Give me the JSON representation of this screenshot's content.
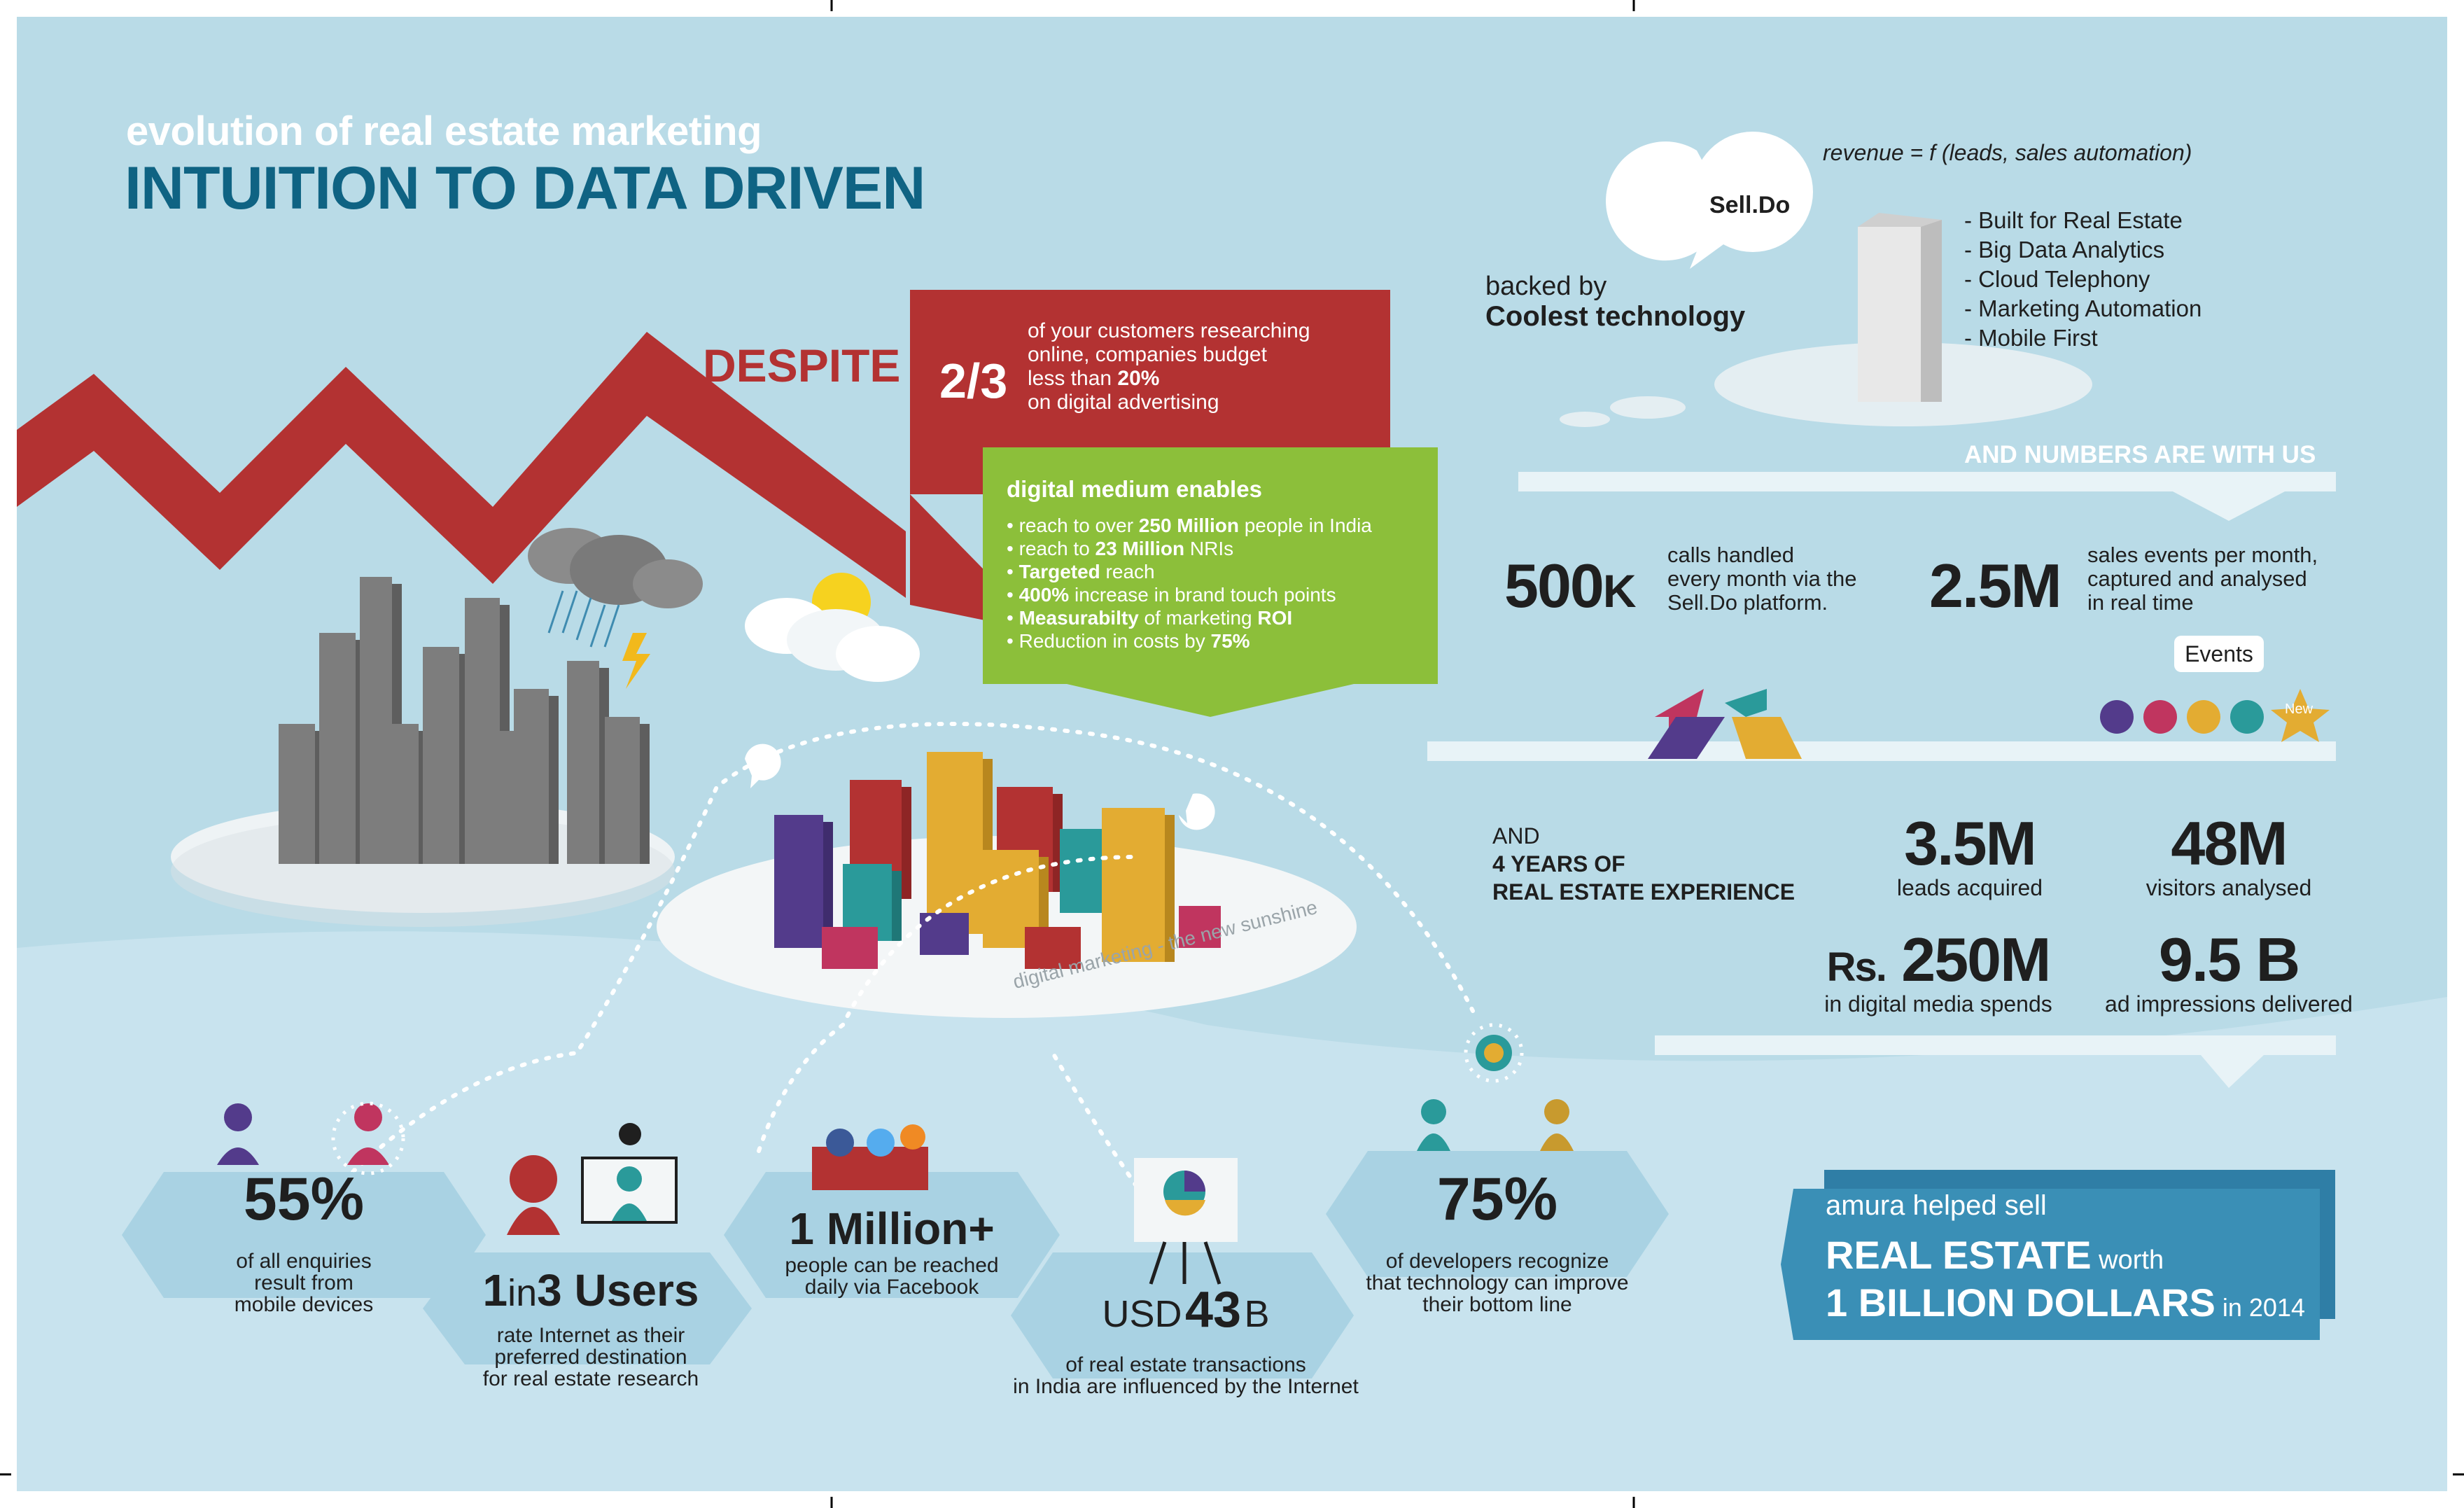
{
  "header": {
    "subtitle": "evolution of real estate marketing",
    "title": "INTUITION TO DATA DRIVEN"
  },
  "despite": {
    "label": "DESPITE",
    "fraction": "2/3",
    "text_parts": [
      "of your customers researching",
      "online, companies budget",
      "less than ",
      "20%",
      "on digital advertising"
    ]
  },
  "digital_medium": {
    "title": "digital medium enables",
    "items": [
      {
        "pre": "reach to over ",
        "bold": "250 Million",
        "post": " people in India"
      },
      {
        "pre": "reach to ",
        "bold": "23 Million",
        "post": " NRIs"
      },
      {
        "pre": "",
        "bold": "Targeted",
        "post": " reach"
      },
      {
        "pre": "",
        "bold": "400%",
        "post": " increase in brand touch points"
      },
      {
        "pre": "",
        "bold": "Measurabilty",
        "post": " of marketing ",
        "bold2": "ROI"
      },
      {
        "pre": "Reduction in costs by ",
        "bold": "75%",
        "post": ""
      }
    ]
  },
  "caption": "digital marketing - the new sunshine",
  "selldo": {
    "formula": "revenue = f (leads, sales automation)",
    "bubble": "Sell.Do",
    "backed_by": "backed by",
    "backed_by_bold": "Coolest technology",
    "features": [
      "Built for Real Estate",
      "Big Data Analytics",
      "Cloud Telephony",
      "Marketing Automation",
      "Mobile First"
    ]
  },
  "numbers": {
    "heading": "AND NUMBERS ARE WITH US",
    "calls": {
      "value": "500",
      "unit": "K",
      "text": [
        "calls handled",
        "every month via the",
        "Sell.Do platform."
      ]
    },
    "events": {
      "value": "2.5M",
      "text": [
        "sales events per month,",
        "captured and analysed",
        "in real time"
      ],
      "pill": "Events",
      "star": "New"
    }
  },
  "experience": {
    "and": "AND",
    "years": "4 YEARS OF",
    "re": "REAL ESTATE EXPERIENCE",
    "stats": [
      {
        "value": "3.5M",
        "label": "leads acquired"
      },
      {
        "value": "48M",
        "label": "visitors analysed"
      },
      {
        "prefix": "Rs.",
        "value": "250M",
        "label": "in digital media spends"
      },
      {
        "value": "9.5 B",
        "label": "ad impressions delivered"
      }
    ]
  },
  "amura": {
    "line1": "amura helped sell",
    "line2a": "REAL ESTATE",
    "line2b": " worth",
    "line3a": "1 BILLION DOLLARS",
    "line3b": " in 2014"
  },
  "bottom": {
    "mobile": {
      "value": "55%",
      "label": [
        "of all enquiries",
        "result from",
        "mobile devices"
      ]
    },
    "users": {
      "a": "1",
      "b": "in",
      "c": "3",
      "d": " Users",
      "label": [
        "rate Internet as their",
        "preferred destination",
        "for real estate research"
      ]
    },
    "facebook": {
      "value": "1 Million+",
      "label": [
        "people can be reached",
        "daily via Facebook"
      ]
    },
    "usd": {
      "a": "USD",
      "b": "43",
      "c": "B",
      "label": [
        "of real estate transactions",
        "in India are influenced by the Internet"
      ]
    },
    "developers": {
      "value": "75%",
      "label": [
        "of developers recognize",
        "that technology can improve",
        "their bottom line"
      ]
    }
  },
  "colors": {
    "background": "#b9dbe7",
    "red": "#b33232",
    "green": "#8cbf3a",
    "title_blue": "#0f6383",
    "banner_blue": "#3a8fb6"
  }
}
